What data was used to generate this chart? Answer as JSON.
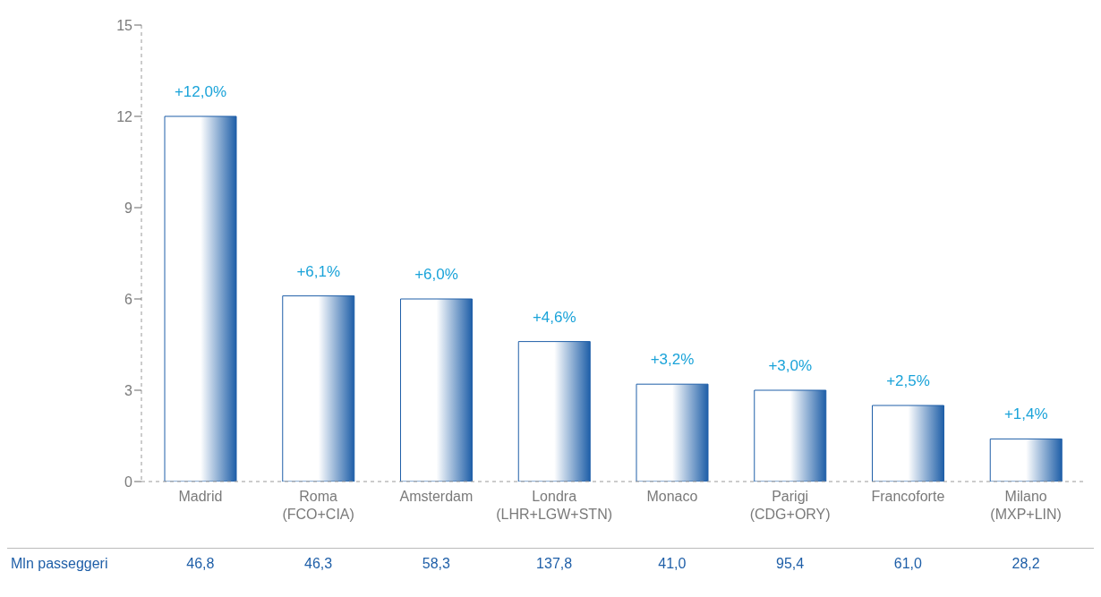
{
  "chart_data": {
    "type": "bar",
    "categories": [
      "Madrid",
      "Roma\n(FCO+CIA)",
      "Amsterdam",
      "Londra\n(LHR+LGW+STN)",
      "Monaco",
      "Parigi\n(CDG+ORY)",
      "Francoforte",
      "Milano\n(MXP+LIN)"
    ],
    "values": [
      12.0,
      6.1,
      6.0,
      4.6,
      3.2,
      3.0,
      2.5,
      1.4
    ],
    "value_labels": [
      "+12,0%",
      "+6,1%",
      "+6,0%",
      "+4,6%",
      "+3,2%",
      "+3,0%",
      "+2,5%",
      "+1,4%"
    ],
    "color": "#1f5fa8",
    "ylim": [
      0,
      15
    ],
    "yticks": [
      0,
      3,
      6,
      9,
      12,
      15
    ],
    "grid": false,
    "legend": false,
    "annotations": [
      "Mln passeggeri",
      "46,8",
      "46,3",
      "58,3",
      "137,8",
      "41,0",
      "95,4",
      "61,0",
      "28,2"
    ]
  }
}
